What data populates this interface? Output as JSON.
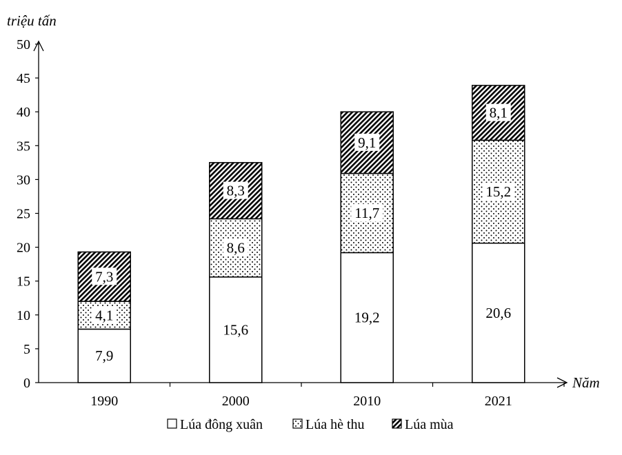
{
  "chart_data": {
    "type": "bar",
    "stacked": true,
    "ylabel": "triệu tấn",
    "xlabel": "Năm",
    "ylim": [
      0,
      50
    ],
    "yticks": [
      "0",
      "5",
      "10",
      "15",
      "20",
      "25",
      "30",
      "35",
      "40",
      "45",
      "50"
    ],
    "categories": [
      "1990",
      "2000",
      "2010",
      "2021"
    ],
    "series": [
      {
        "name": "Lúa đông xuân",
        "pattern": "blank",
        "values": [
          7.9,
          15.6,
          19.2,
          20.6
        ],
        "labels": [
          "7,9",
          "15,6",
          "19,2",
          "20,6"
        ]
      },
      {
        "name": "Lúa hè thu",
        "pattern": "dots",
        "values": [
          4.1,
          8.6,
          11.7,
          15.2
        ],
        "labels": [
          "4,1",
          "8,6",
          "11,7",
          "15,2"
        ]
      },
      {
        "name": "Lúa mùa",
        "pattern": "hatch",
        "values": [
          7.3,
          8.3,
          9.1,
          8.1
        ],
        "labels": [
          "7,3",
          "8,3",
          "9,1",
          "8,1"
        ]
      }
    ],
    "legend_position": "bottom",
    "grid": false
  }
}
